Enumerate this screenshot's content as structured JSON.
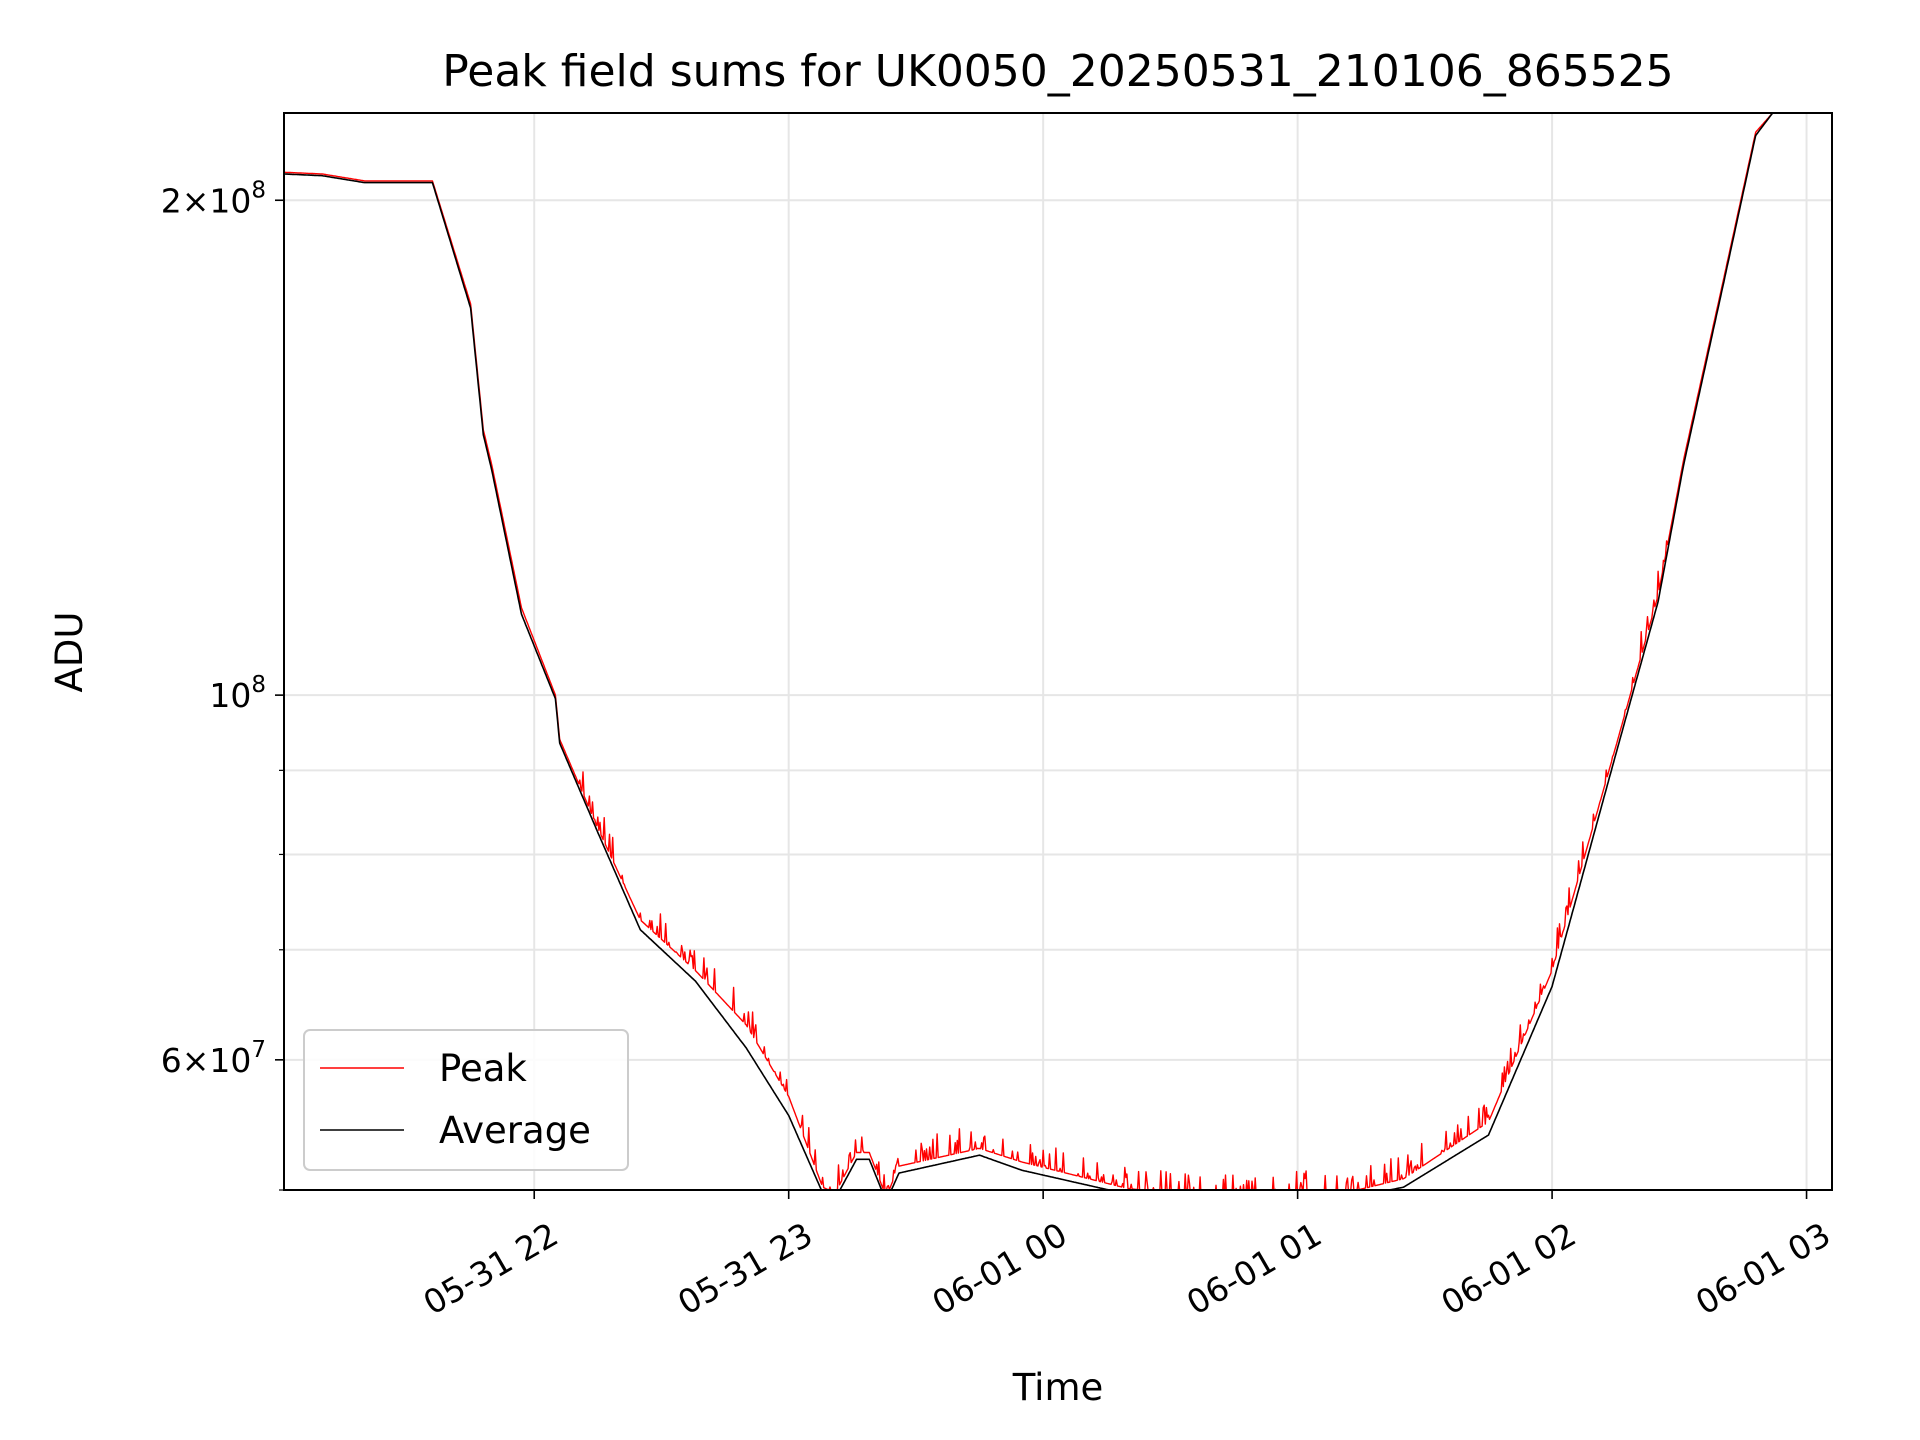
{
  "chart_data": {
    "type": "line",
    "title": "Peak field sums for UK0050_20250531_210106_865525",
    "xlabel": "Time",
    "ylabel": "ADU",
    "y_scale": "log",
    "ylim": [
      50000000,
      226000000
    ],
    "xlim": [
      "2025-05-31 21:01",
      "2025-06-01 03:06"
    ],
    "x_ticks": [
      {
        "value": "2025-05-31 22:00",
        "label": "05-31 22"
      },
      {
        "value": "2025-05-31 23:00",
        "label": "05-31 23"
      },
      {
        "value": "2025-06-01 00:00",
        "label": "06-01 00"
      },
      {
        "value": "2025-06-01 01:00",
        "label": "06-01 01"
      },
      {
        "value": "2025-06-01 02:00",
        "label": "06-01 02"
      },
      {
        "value": "2025-06-01 03:00",
        "label": "06-01 03"
      }
    ],
    "y_major_ticks": [
      {
        "value": 60000000,
        "mantissa": "6",
        "exponent": "7"
      },
      {
        "value": 100000000,
        "mantissa": "",
        "exponent": "8"
      },
      {
        "value": 200000000,
        "mantissa": "2",
        "exponent": "8"
      }
    ],
    "y_minor_ticks": [
      50000000,
      70000000,
      80000000,
      90000000
    ],
    "grid": true,
    "legend_position": "lower-left",
    "series": [
      {
        "name": "Peak",
        "color": "#ff0000",
        "noise": "spiky",
        "points": [
          [
            "2025-05-31 21:01",
            208000000
          ],
          [
            "2025-05-31 21:10",
            207500000
          ],
          [
            "2025-05-31 21:20",
            205500000
          ],
          [
            "2025-05-31 21:36",
            205500000
          ],
          [
            "2025-05-31 21:45",
            173000000
          ],
          [
            "2025-05-31 21:48",
            145000000
          ],
          [
            "2025-05-31 21:50",
            138000000
          ],
          [
            "2025-05-31 21:57",
            113000000
          ],
          [
            "2025-05-31 22:05",
            100000000
          ],
          [
            "2025-05-31 22:06",
            94000000
          ],
          [
            "2025-05-31 22:15",
            83000000
          ],
          [
            "2025-05-31 22:25",
            73000000
          ],
          [
            "2025-05-31 22:38",
            68000000
          ],
          [
            "2025-05-31 22:50",
            63000000
          ],
          [
            "2025-05-31 23:00",
            57000000
          ],
          [
            "2025-05-31 23:08",
            50200000
          ],
          [
            "2025-05-31 23:11",
            49800000
          ],
          [
            "2025-05-31 23:16",
            52700000
          ],
          [
            "2025-05-31 23:19",
            52700000
          ],
          [
            "2025-05-31 23:23",
            49500000
          ],
          [
            "2025-05-31 23:26",
            51700000
          ],
          [
            "2025-05-31 23:45",
            53000000
          ],
          [
            "2025-05-31 23:55",
            52000000
          ],
          [
            "2025-06-01 00:20",
            50100000
          ],
          [
            "2025-06-01 00:40",
            49500000
          ],
          [
            "2025-06-01 01:10",
            49700000
          ],
          [
            "2025-06-01 01:25",
            50800000
          ],
          [
            "2025-06-01 01:45",
            55000000
          ],
          [
            "2025-06-01 02:00",
            68000000
          ],
          [
            "2025-06-01 02:15",
            93000000
          ],
          [
            "2025-06-01 02:25",
            115000000
          ],
          [
            "2025-06-01 02:31",
            139000000
          ],
          [
            "2025-06-01 02:40",
            177000000
          ],
          [
            "2025-06-01 02:48",
            220000000
          ],
          [
            "2025-06-01 02:52",
            226000000
          ],
          [
            "2025-06-01 03:06",
            226000000
          ]
        ]
      },
      {
        "name": "Average",
        "color": "#000000",
        "noise": "smooth",
        "points": [
          [
            "2025-05-31 21:01",
            207500000
          ],
          [
            "2025-05-31 21:10",
            207000000
          ],
          [
            "2025-05-31 21:20",
            205000000
          ],
          [
            "2025-05-31 21:36",
            205000000
          ],
          [
            "2025-05-31 21:45",
            172000000
          ],
          [
            "2025-05-31 21:48",
            144000000
          ],
          [
            "2025-05-31 21:50",
            137000000
          ],
          [
            "2025-05-31 21:57",
            112000000
          ],
          [
            "2025-05-31 22:05",
            99500000
          ],
          [
            "2025-05-31 22:06",
            93500000
          ],
          [
            "2025-05-31 22:15",
            82500000
          ],
          [
            "2025-05-31 22:25",
            72000000
          ],
          [
            "2025-05-31 22:38",
            67000000
          ],
          [
            "2025-05-31 22:50",
            61000000
          ],
          [
            "2025-05-31 23:00",
            55500000
          ],
          [
            "2025-05-31 23:08",
            49800000
          ],
          [
            "2025-05-31 23:11",
            49400000
          ],
          [
            "2025-05-31 23:16",
            52200000
          ],
          [
            "2025-05-31 23:19",
            52200000
          ],
          [
            "2025-05-31 23:23",
            49200000
          ],
          [
            "2025-05-31 23:26",
            51200000
          ],
          [
            "2025-05-31 23:45",
            52500000
          ],
          [
            "2025-05-31 23:55",
            51400000
          ],
          [
            "2025-06-01 00:20",
            49700000
          ],
          [
            "2025-06-01 00:40",
            49200000
          ],
          [
            "2025-06-01 01:10",
            49300000
          ],
          [
            "2025-06-01 01:25",
            50200000
          ],
          [
            "2025-06-01 01:45",
            54000000
          ],
          [
            "2025-06-01 02:00",
            66500000
          ],
          [
            "2025-06-01 02:15",
            92000000
          ],
          [
            "2025-06-01 02:25",
            114000000
          ],
          [
            "2025-06-01 02:31",
            138000000
          ],
          [
            "2025-06-01 02:40",
            176000000
          ],
          [
            "2025-06-01 02:48",
            219000000
          ],
          [
            "2025-06-01 02:52",
            226000000
          ],
          [
            "2025-06-01 03:06",
            226000000
          ]
        ]
      }
    ]
  }
}
